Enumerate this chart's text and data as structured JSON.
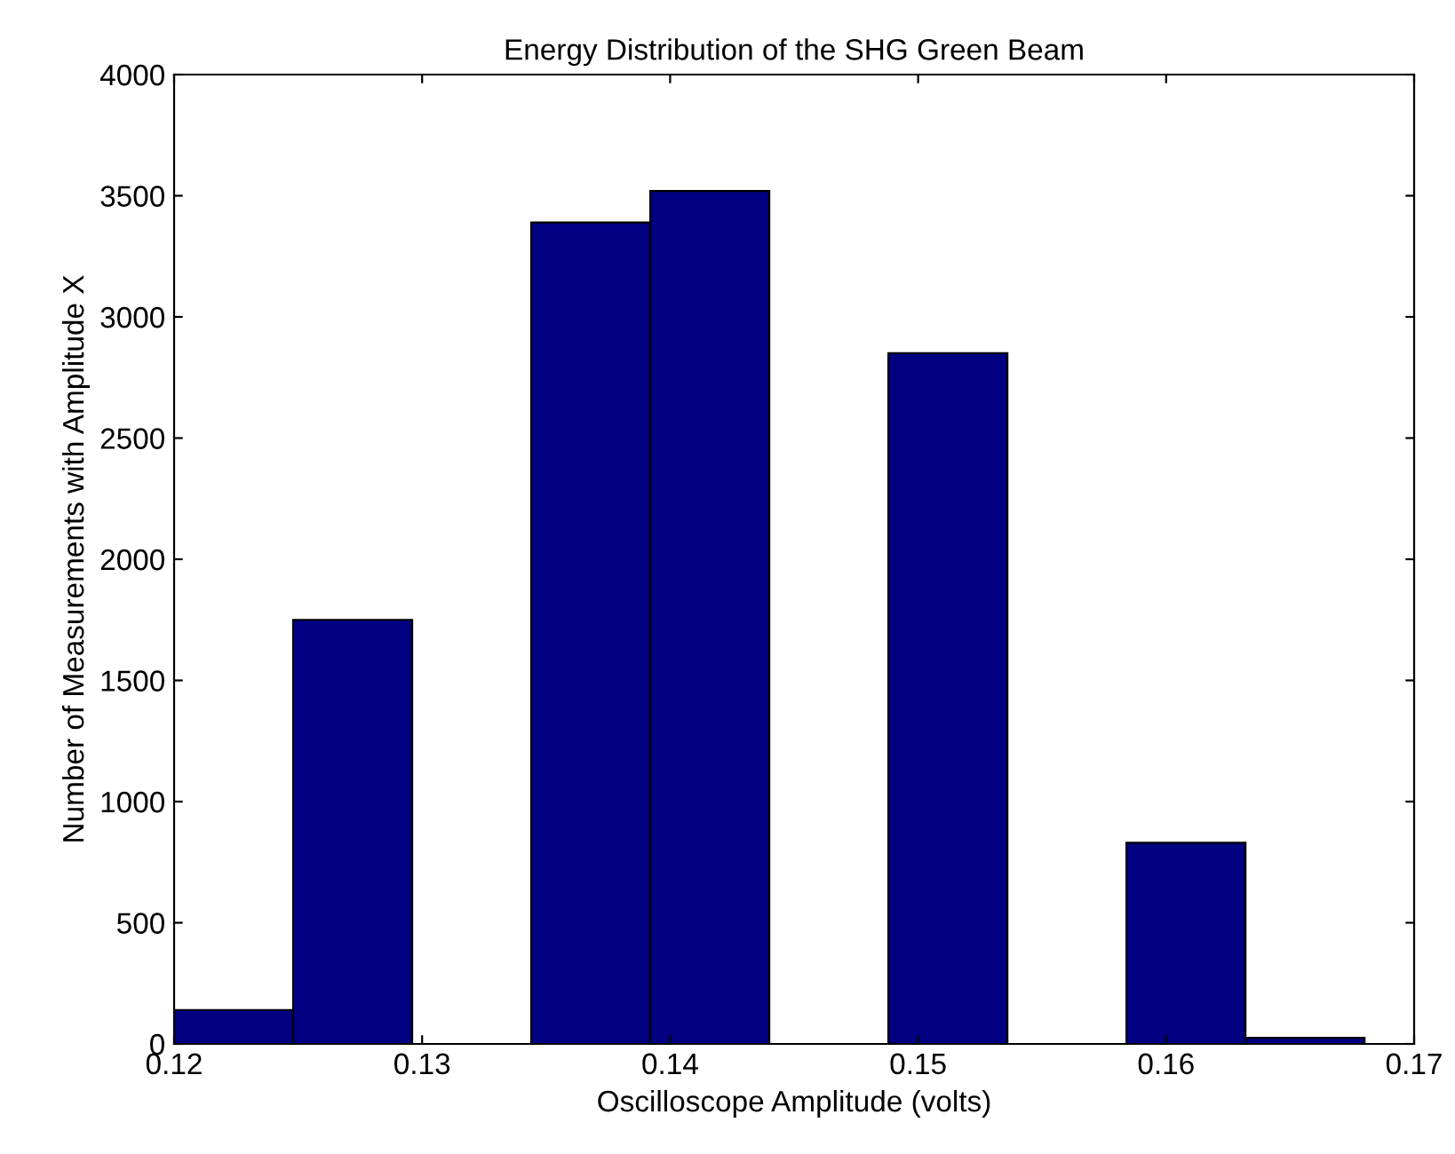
{
  "chart_data": {
    "type": "histogram",
    "title": "Energy Distribution of the SHG Green Beam",
    "xlabel": "Oscilloscope Amplitude (volts)",
    "ylabel": "Number of Measurements with Amplitude X",
    "bins": [
      0.12,
      0.1248,
      0.1296,
      0.1344,
      0.1392,
      0.144,
      0.1488,
      0.1536,
      0.1584,
      0.1632,
      0.168
    ],
    "values": [
      140,
      1750,
      0,
      3390,
      3520,
      0,
      2850,
      0,
      830,
      25
    ],
    "color": "#000080",
    "xlim": [
      0.12,
      0.17
    ],
    "xticks": [
      0.12,
      0.13,
      0.14,
      0.15,
      0.16,
      0.17
    ],
    "ylim": [
      0,
      4000
    ],
    "yticks": [
      0,
      500,
      1000,
      1500,
      2000,
      2500,
      3000,
      3500,
      4000
    ],
    "grid": false
  }
}
